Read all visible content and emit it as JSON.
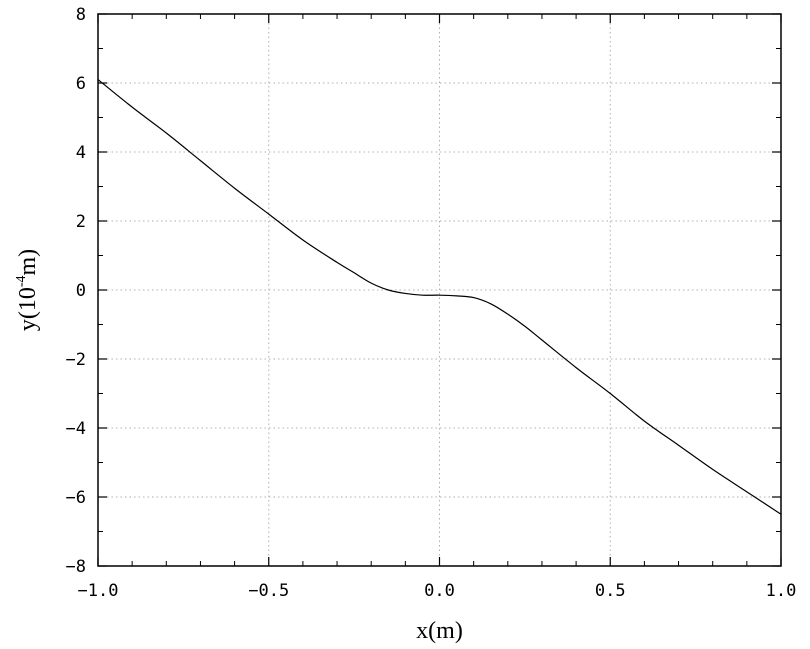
{
  "chart_data": {
    "type": "line",
    "title": "",
    "xlabel": "x(m)",
    "ylabel": {
      "prefix": "y(10",
      "exponent": "-4",
      "suffix": "m)"
    },
    "xlim": [
      -1.0,
      1.0
    ],
    "ylim": [
      -8,
      8
    ],
    "xticks": [
      -1.0,
      -0.5,
      0.0,
      0.5,
      1.0
    ],
    "xtick_labels": [
      "−1.0",
      "−0.5",
      "0.0",
      "0.5",
      "1.0"
    ],
    "yticks": [
      -8,
      -6,
      -4,
      -2,
      0,
      2,
      4,
      6,
      8
    ],
    "ytick_labels": [
      "−8",
      "−6",
      "−4",
      "−2",
      "0",
      "2",
      "4",
      "6",
      "8"
    ],
    "grid": true,
    "line_color": "#000000",
    "grid_color": "#b0b0b0",
    "series": [
      {
        "x": [
          -1.0,
          -0.9,
          -0.8,
          -0.7,
          -0.6,
          -0.5,
          -0.4,
          -0.3,
          -0.25,
          -0.2,
          -0.15,
          -0.1,
          -0.05,
          0.0,
          0.05,
          0.1,
          0.15,
          0.2,
          0.25,
          0.3,
          0.4,
          0.5,
          0.6,
          0.7,
          0.8,
          0.9,
          1.0
        ],
        "y": [
          6.1,
          5.3,
          4.55,
          3.75,
          2.95,
          2.2,
          1.45,
          0.8,
          0.5,
          0.2,
          0.0,
          -0.1,
          -0.15,
          -0.15,
          -0.17,
          -0.22,
          -0.4,
          -0.7,
          -1.05,
          -1.45,
          -2.25,
          -3.0,
          -3.8,
          -4.5,
          -5.2,
          -5.85,
          -6.5
        ]
      }
    ]
  }
}
